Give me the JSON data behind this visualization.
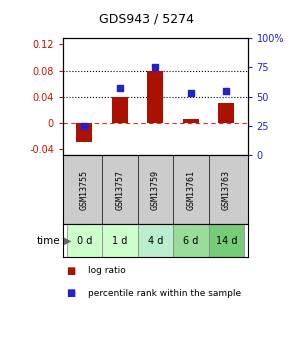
{
  "title": "GDS943 / 5274",
  "samples": [
    "GSM13755",
    "GSM13757",
    "GSM13759",
    "GSM13761",
    "GSM13763"
  ],
  "time_labels": [
    "0 d",
    "1 d",
    "4 d",
    "6 d",
    "14 d"
  ],
  "log_ratio": [
    -0.03,
    0.04,
    0.08,
    0.005,
    0.03
  ],
  "percentile_rank": [
    25,
    57,
    75,
    53,
    55
  ],
  "ylim_left": [
    -0.05,
    0.13
  ],
  "ylim_right": [
    0,
    100
  ],
  "yticks_left": [
    -0.04,
    0,
    0.04,
    0.08,
    0.12
  ],
  "yticks_left_labels": [
    "-0.04",
    "0",
    "0.04",
    "0.08",
    "0.12"
  ],
  "yticks_right": [
    0,
    25,
    50,
    75,
    100
  ],
  "yticks_right_labels": [
    "0",
    "25",
    "50",
    "75",
    "100%"
  ],
  "hlines": [
    0.04,
    0.08
  ],
  "bar_color": "#AA1100",
  "dot_color": "#2222CC",
  "zero_line_color": "#CC3333",
  "bg_color": "#FFFFFF",
  "plot_bg": "#FFFFFF",
  "time_row_colors": [
    "#CCFFCC",
    "#CCFFCC",
    "#BBEECC",
    "#99DD99",
    "#77CC77"
  ],
  "sample_row_color": "#CCCCCC",
  "left_axis_color": "#CC1100",
  "right_axis_color": "#2222CC",
  "legend_items": [
    {
      "color": "#AA1100",
      "label": "log ratio"
    },
    {
      "color": "#2222CC",
      "label": "percentile rank within the sample"
    }
  ]
}
